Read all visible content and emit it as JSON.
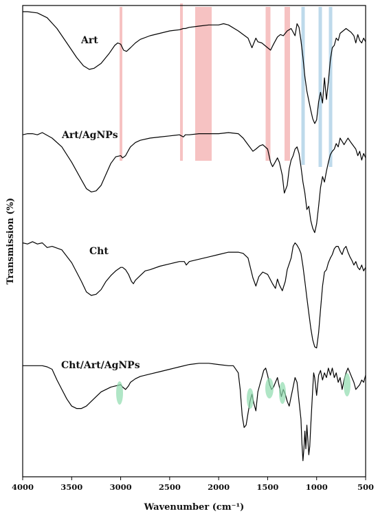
{
  "chart_data": {
    "type": "line",
    "xlabel": "Wavenumber (cm⁻¹)",
    "ylabel": "Transmission (%)",
    "xlim": [
      4000,
      500
    ],
    "x_ticks": [
      4000,
      3500,
      3000,
      2500,
      2000,
      1500,
      1000,
      500
    ],
    "grid": false,
    "legend": "none",
    "series": [
      {
        "name": "Art",
        "x": [
          4000,
          3950,
          3850,
          3750,
          3650,
          3550,
          3450,
          3380,
          3320,
          3270,
          3200,
          3120,
          3060,
          3030,
          3000,
          2970,
          2940,
          2900,
          2850,
          2800,
          2700,
          2600,
          2500,
          2400,
          2360,
          2340,
          2300,
          2200,
          2100,
          2000,
          1950,
          1900,
          1800,
          1700,
          1660,
          1620,
          1600,
          1560,
          1500,
          1470,
          1440,
          1400,
          1370,
          1340,
          1300,
          1260,
          1220,
          1200,
          1180,
          1160,
          1140,
          1120,
          1100,
          1080,
          1060,
          1040,
          1020,
          1000,
          980,
          960,
          940,
          920,
          900,
          880,
          860,
          840,
          820,
          800,
          780,
          760,
          700,
          650,
          620,
          600,
          580,
          560,
          540,
          520,
          500
        ],
        "y": [
          96,
          96,
          95,
          91,
          82,
          70,
          58,
          51,
          48,
          49,
          53,
          61,
          68,
          70,
          69,
          64,
          63,
          66,
          70,
          73,
          76,
          78,
          80,
          81,
          82,
          82,
          83,
          84,
          85,
          85,
          86,
          85,
          80,
          74,
          66,
          74,
          71,
          70,
          66,
          64,
          69,
          75,
          77,
          76,
          80,
          82,
          76,
          86,
          83,
          72,
          58,
          42,
          30,
          22,
          14,
          7,
          3,
          6,
          21,
          29,
          20,
          41,
          23,
          38,
          56,
          66,
          68,
          74,
          72,
          78,
          82,
          79,
          76,
          70,
          77,
          72,
          70,
          74,
          71
        ]
      },
      {
        "name": "Art/AgNPs",
        "x": [
          4000,
          3950,
          3900,
          3850,
          3800,
          3700,
          3600,
          3500,
          3400,
          3350,
          3300,
          3250,
          3200,
          3150,
          3100,
          3050,
          3000,
          2980,
          2950,
          2920,
          2900,
          2850,
          2800,
          2700,
          2600,
          2500,
          2400,
          2360,
          2340,
          2300,
          2200,
          2100,
          2000,
          1900,
          1800,
          1750,
          1700,
          1650,
          1620,
          1580,
          1550,
          1500,
          1470,
          1450,
          1430,
          1400,
          1380,
          1350,
          1330,
          1300,
          1280,
          1260,
          1240,
          1220,
          1200,
          1180,
          1160,
          1140,
          1120,
          1100,
          1080,
          1060,
          1040,
          1020,
          1000,
          980,
          960,
          940,
          920,
          900,
          880,
          860,
          840,
          820,
          800,
          780,
          760,
          720,
          680,
          650,
          600,
          580,
          560,
          540,
          520,
          500
        ],
        "y": [
          93,
          94,
          94,
          93,
          95,
          90,
          82,
          68,
          52,
          44,
          41,
          42,
          47,
          57,
          67,
          73,
          74,
          72,
          74,
          79,
          82,
          86,
          88,
          90,
          91,
          92,
          93,
          91,
          93,
          93,
          94,
          94,
          94,
          95,
          94,
          90,
          84,
          78,
          80,
          83,
          84,
          80,
          68,
          64,
          67,
          72,
          68,
          56,
          40,
          47,
          62,
          70,
          74,
          80,
          82,
          76,
          64,
          50,
          40,
          25,
          28,
          15,
          8,
          4,
          12,
          28,
          45,
          55,
          50,
          60,
          68,
          75,
          78,
          80,
          85,
          82,
          90,
          84,
          90,
          86,
          80,
          74,
          78,
          70,
          76,
          72
        ]
      },
      {
        "name": "Cht",
        "x": [
          4000,
          3950,
          3900,
          3850,
          3800,
          3750,
          3700,
          3600,
          3500,
          3400,
          3350,
          3300,
          3250,
          3200,
          3150,
          3100,
          3050,
          3000,
          2980,
          2950,
          2920,
          2890,
          2870,
          2850,
          2800,
          2750,
          2700,
          2600,
          2500,
          2400,
          2350,
          2330,
          2300,
          2200,
          2100,
          2000,
          1900,
          1800,
          1750,
          1700,
          1650,
          1620,
          1590,
          1550,
          1500,
          1450,
          1420,
          1400,
          1380,
          1350,
          1320,
          1300,
          1260,
          1240,
          1220,
          1200,
          1180,
          1160,
          1140,
          1120,
          1100,
          1080,
          1060,
          1040,
          1020,
          1000,
          980,
          960,
          940,
          920,
          900,
          880,
          860,
          840,
          820,
          800,
          780,
          760,
          740,
          720,
          700,
          680,
          660,
          640,
          620,
          600,
          580,
          560,
          540,
          520,
          500
        ],
        "y": [
          95,
          94,
          96,
          94,
          95,
          91,
          92,
          89,
          78,
          62,
          53,
          50,
          51,
          55,
          62,
          67,
          71,
          74,
          74,
          72,
          68,
          62,
          60,
          63,
          67,
          71,
          72,
          75,
          77,
          79,
          79,
          76,
          79,
          81,
          83,
          85,
          87,
          87,
          86,
          82,
          65,
          58,
          66,
          70,
          68,
          60,
          56,
          64,
          59,
          54,
          62,
          72,
          82,
          92,
          95,
          93,
          90,
          86,
          75,
          62,
          48,
          35,
          22,
          12,
          6,
          5,
          18,
          38,
          58,
          70,
          72,
          78,
          82,
          85,
          90,
          92,
          92,
          88,
          85,
          90,
          92,
          87,
          83,
          80,
          76,
          79,
          74,
          72,
          76,
          71,
          74
        ]
      },
      {
        "name": "Cht/Art/AgNPs",
        "x": [
          4000,
          3900,
          3800,
          3750,
          3700,
          3650,
          3600,
          3550,
          3500,
          3450,
          3400,
          3350,
          3300,
          3250,
          3200,
          3150,
          3100,
          3050,
          3000,
          2980,
          2950,
          2920,
          2900,
          2850,
          2800,
          2700,
          2600,
          2500,
          2400,
          2300,
          2200,
          2100,
          2000,
          1900,
          1850,
          1800,
          1780,
          1760,
          1740,
          1720,
          1700,
          1680,
          1660,
          1640,
          1620,
          1600,
          1580,
          1560,
          1540,
          1520,
          1500,
          1480,
          1460,
          1440,
          1420,
          1400,
          1380,
          1360,
          1340,
          1320,
          1300,
          1280,
          1260,
          1240,
          1220,
          1200,
          1180,
          1160,
          1150,
          1140,
          1130,
          1120,
          1110,
          1100,
          1090,
          1080,
          1070,
          1060,
          1050,
          1040,
          1030,
          1020,
          1000,
          980,
          960,
          940,
          920,
          900,
          880,
          860,
          840,
          820,
          800,
          780,
          760,
          740,
          720,
          700,
          680,
          660,
          640,
          620,
          600,
          580,
          560,
          540,
          520,
          500
        ],
        "y": [
          90,
          90,
          90,
          89,
          87,
          78,
          70,
          62,
          56,
          54,
          54,
          56,
          60,
          64,
          68,
          70,
          72,
          73,
          74,
          72,
          70,
          73,
          76,
          79,
          81,
          83,
          85,
          87,
          89,
          91,
          92,
          92,
          91,
          90,
          90,
          84,
          70,
          48,
          38,
          40,
          50,
          60,
          66,
          58,
          52,
          68,
          74,
          80,
          86,
          88,
          82,
          74,
          70,
          72,
          76,
          80,
          72,
          64,
          70,
          66,
          60,
          56,
          64,
          72,
          80,
          76,
          60,
          45,
          25,
          10,
          20,
          35,
          20,
          40,
          28,
          15,
          22,
          40,
          55,
          70,
          84,
          80,
          65,
          82,
          86,
          78,
          84,
          80,
          88,
          82,
          88,
          80,
          84,
          76,
          80,
          70,
          78,
          84,
          88,
          84,
          80,
          76,
          70,
          72,
          74,
          78,
          76,
          82
        ]
      }
    ]
  }
}
